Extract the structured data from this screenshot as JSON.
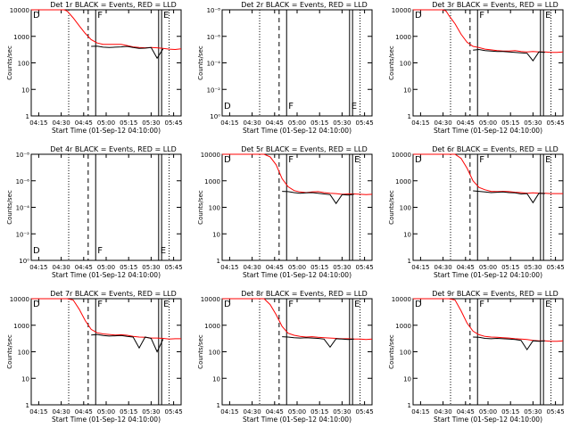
{
  "chart_data": {
    "type": "line",
    "xlabel": "Start Time (01-Sep-12 04:10:00)",
    "ylabel": "Counts/sec",
    "x_ticks": [
      "04:15",
      "04:30",
      "04:45",
      "05:00",
      "05:15",
      "05:30",
      "05:45"
    ],
    "x_range_min": [
      0,
      100
    ],
    "x_tick_min": [
      5,
      20,
      35,
      50,
      65,
      80,
      95
    ],
    "y_ticks_log": [
      "1",
      "10",
      "100",
      "1000",
      "10000"
    ],
    "y_ticks_tiny": [
      "10⁰",
      "10⁻²",
      "10⁻⁴",
      "10⁻⁶",
      "10⁻⁸"
    ],
    "ylim": [
      1,
      10000
    ],
    "series_colors": {
      "events": "#000000",
      "lld": "#ff0000"
    },
    "panels": [
      {
        "title": "Det 1r BLACK = Events, RED = LLD",
        "scale": "log",
        "markers": [
          "D",
          "F",
          "E"
        ],
        "x": [
          0,
          2,
          4,
          6,
          8,
          10,
          12,
          14,
          16,
          18,
          20,
          22,
          24,
          28,
          32,
          36,
          40,
          44,
          48,
          52,
          56,
          60,
          64,
          68,
          72,
          76,
          80,
          84,
          88,
          92,
          96,
          100
        ],
        "series": [
          {
            "role": "lld",
            "values": [
              10000,
              10000,
              10000,
              10000,
              10000,
              10000,
              10000,
              10000,
              10000,
              10000,
              10000,
              10000,
              9000,
              5000,
              2500,
              1300,
              750,
              560,
              500,
              500,
              500,
              500,
              450,
              400,
              380,
              370,
              380,
              370,
              350,
              330,
              320,
              340
            ]
          },
          {
            "role": "events",
            "values": [
              null,
              null,
              null,
              null,
              null,
              null,
              null,
              null,
              null,
              null,
              null,
              null,
              null,
              null,
              null,
              null,
              420,
              430,
              390,
              380,
              390,
              400,
              420,
              380,
              350,
              360,
              380,
              150,
              340,
              null,
              null,
              null
            ]
          }
        ]
      },
      {
        "title": "Det 2r BLACK = Events, RED = LLD",
        "scale": "tiny",
        "markers": [
          "D",
          "F",
          "E"
        ],
        "x": [],
        "series": []
      },
      {
        "title": "Det 3r BLACK = Events, RED = LLD",
        "scale": "log",
        "markers": [
          "D",
          "F",
          "E"
        ],
        "x": [
          0,
          2,
          4,
          6,
          8,
          10,
          12,
          14,
          16,
          18,
          20,
          22,
          24,
          28,
          32,
          36,
          40,
          44,
          48,
          52,
          56,
          60,
          64,
          68,
          72,
          76,
          80,
          84,
          88,
          92,
          96,
          100
        ],
        "series": [
          {
            "role": "lld",
            "values": [
              10000,
              10000,
              10000,
              10000,
              10000,
              10000,
              10000,
              10000,
              10000,
              10000,
              10000,
              9000,
              6000,
              3000,
              1200,
              600,
              420,
              380,
              330,
              310,
              290,
              280,
              280,
              290,
              270,
              260,
              270,
              260,
              260,
              250,
              250,
              260
            ]
          },
          {
            "role": "events",
            "values": [
              null,
              null,
              null,
              null,
              null,
              null,
              null,
              null,
              null,
              null,
              null,
              null,
              null,
              null,
              null,
              null,
              300,
              320,
              290,
              280,
              270,
              270,
              260,
              250,
              240,
              230,
              120,
              260,
              250,
              null,
              null,
              null
            ]
          }
        ]
      },
      {
        "title": "Det 4r BLACK = Events, RED = LLD",
        "scale": "tiny",
        "markers": [
          "D",
          "F",
          "E"
        ],
        "x": [],
        "series": []
      },
      {
        "title": "Det 5r BLACK = Events, RED = LLD",
        "scale": "log",
        "markers": [
          "D",
          "F",
          "E"
        ],
        "x": [
          0,
          2,
          4,
          6,
          8,
          10,
          12,
          14,
          16,
          18,
          20,
          22,
          24,
          28,
          32,
          36,
          40,
          44,
          48,
          52,
          56,
          60,
          64,
          68,
          72,
          76,
          80,
          84,
          88,
          92,
          96,
          100
        ],
        "series": [
          {
            "role": "lld",
            "values": [
              10000,
              10000,
              10000,
              10000,
              10000,
              10000,
              10000,
              10000,
              10000,
              10000,
              10000,
              10000,
              10000,
              10000,
              8000,
              4000,
              1200,
              600,
              430,
              380,
              360,
              380,
              390,
              360,
              340,
              330,
              310,
              320,
              320,
              310,
              300,
              310
            ]
          },
          {
            "role": "events",
            "values": [
              null,
              null,
              null,
              null,
              null,
              null,
              null,
              null,
              null,
              null,
              null,
              null,
              null,
              null,
              null,
              null,
              400,
              390,
              360,
              340,
              350,
              360,
              340,
              320,
              300,
              140,
              300,
              290,
              310,
              null,
              null,
              null
            ]
          }
        ]
      },
      {
        "title": "Det 6r BLACK = Events, RED = LLD",
        "scale": "log",
        "markers": [
          "D",
          "F",
          "E"
        ],
        "x": [
          0,
          2,
          4,
          6,
          8,
          10,
          12,
          14,
          16,
          18,
          20,
          22,
          24,
          28,
          32,
          36,
          40,
          44,
          48,
          52,
          56,
          60,
          64,
          68,
          72,
          76,
          80,
          84,
          88,
          92,
          96,
          100
        ],
        "series": [
          {
            "role": "lld",
            "values": [
              10000,
              10000,
              10000,
              10000,
              10000,
              10000,
              10000,
              10000,
              10000,
              10000,
              10000,
              10000,
              10000,
              10000,
              7000,
              3000,
              1000,
              560,
              460,
              400,
              390,
              400,
              390,
              370,
              360,
              340,
              350,
              340,
              340,
              330,
              330,
              330
            ]
          },
          {
            "role": "events",
            "values": [
              null,
              null,
              null,
              null,
              null,
              null,
              null,
              null,
              null,
              null,
              null,
              null,
              null,
              null,
              null,
              null,
              420,
              400,
              380,
              360,
              370,
              380,
              360,
              350,
              320,
              330,
              150,
              340,
              330,
              null,
              null,
              null
            ]
          }
        ]
      },
      {
        "title": "Det 7r BLACK = Events, RED = LLD",
        "scale": "log",
        "markers": [
          "D",
          "F",
          "E"
        ],
        "x": [
          0,
          2,
          4,
          6,
          8,
          10,
          12,
          14,
          16,
          18,
          20,
          22,
          24,
          28,
          32,
          36,
          40,
          44,
          48,
          52,
          56,
          60,
          64,
          68,
          72,
          76,
          80,
          84,
          88,
          92,
          96,
          100
        ],
        "series": [
          {
            "role": "lld",
            "values": [
              10000,
              10000,
              10000,
              10000,
              10000,
              10000,
              10000,
              10000,
              10000,
              10000,
              10000,
              10000,
              10000,
              9000,
              4000,
              1500,
              700,
              520,
              470,
              450,
              430,
              440,
              420,
              380,
              360,
              350,
              330,
              330,
              320,
              300,
              310,
              310
            ]
          },
          {
            "role": "events",
            "values": [
              null,
              null,
              null,
              null,
              null,
              null,
              null,
              null,
              null,
              null,
              null,
              null,
              null,
              null,
              null,
              null,
              430,
              450,
              410,
              390,
              400,
              410,
              380,
              360,
              140,
              360,
              320,
              100,
              300,
              null,
              null,
              null
            ]
          }
        ]
      },
      {
        "title": "Det 8r BLACK = Events, RED = LLD",
        "scale": "log",
        "markers": [
          "D",
          "F",
          "E"
        ],
        "x": [
          0,
          2,
          4,
          6,
          8,
          10,
          12,
          14,
          16,
          18,
          20,
          22,
          24,
          28,
          32,
          36,
          40,
          44,
          48,
          52,
          56,
          60,
          64,
          68,
          72,
          76,
          80,
          84,
          88,
          92,
          96,
          100
        ],
        "series": [
          {
            "role": "lld",
            "values": [
              10000,
              10000,
              10000,
              10000,
              10000,
              10000,
              10000,
              10000,
              10000,
              10000,
              10000,
              10000,
              10000,
              10000,
              6000,
              2500,
              900,
              500,
              420,
              380,
              360,
              370,
              350,
              340,
              330,
              320,
              310,
              310,
              300,
              300,
              290,
              300
            ]
          },
          {
            "role": "events",
            "values": [
              null,
              null,
              null,
              null,
              null,
              null,
              null,
              null,
              null,
              null,
              null,
              null,
              null,
              null,
              null,
              null,
              370,
              360,
              340,
              330,
              340,
              330,
              320,
              300,
              150,
              310,
              300,
              290,
              300,
              null,
              null,
              null
            ]
          }
        ]
      },
      {
        "title": "Det 9r BLACK = Events, RED = LLD",
        "scale": "log",
        "markers": [
          "D",
          "F",
          "E"
        ],
        "x": [
          0,
          2,
          4,
          6,
          8,
          10,
          12,
          14,
          16,
          18,
          20,
          22,
          24,
          28,
          32,
          36,
          40,
          44,
          48,
          52,
          56,
          60,
          64,
          68,
          72,
          76,
          80,
          84,
          88,
          92,
          96,
          100
        ],
        "series": [
          {
            "role": "lld",
            "values": [
              10000,
              10000,
              10000,
              10000,
              10000,
              10000,
              10000,
              10000,
              10000,
              10000,
              10000,
              10000,
              10000,
              9000,
              3500,
              1200,
              600,
              440,
              380,
              360,
              350,
              340,
              330,
              310,
              300,
              290,
              270,
              260,
              260,
              250,
              250,
              260
            ]
          },
          {
            "role": "events",
            "values": [
              null,
              null,
              null,
              null,
              null,
              null,
              null,
              null,
              null,
              null,
              null,
              null,
              null,
              null,
              null,
              null,
              360,
              350,
              320,
              310,
              320,
              310,
              300,
              290,
              270,
              120,
              260,
              250,
              260,
              null,
              null,
              null
            ]
          }
        ]
      }
    ]
  }
}
